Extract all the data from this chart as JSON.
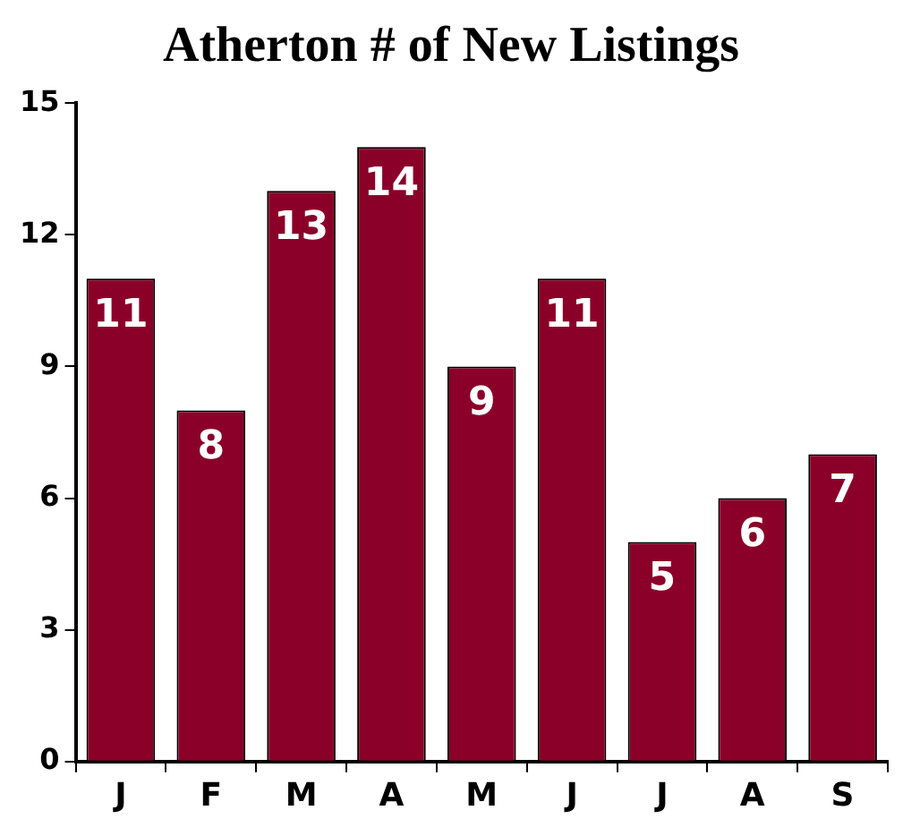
{
  "chart_data": {
    "type": "bar",
    "title": "Atherton # of New Listings",
    "categories": [
      "J",
      "F",
      "M",
      "A",
      "M",
      "J",
      "J",
      "A",
      "S"
    ],
    "values": [
      11,
      8,
      13,
      14,
      9,
      11,
      5,
      6,
      7
    ],
    "color": "#8b0029",
    "ylim": [
      0,
      15
    ],
    "yticks": [
      0,
      3,
      6,
      9,
      12,
      15
    ],
    "grid": false,
    "legend": false,
    "data_labels": true
  }
}
